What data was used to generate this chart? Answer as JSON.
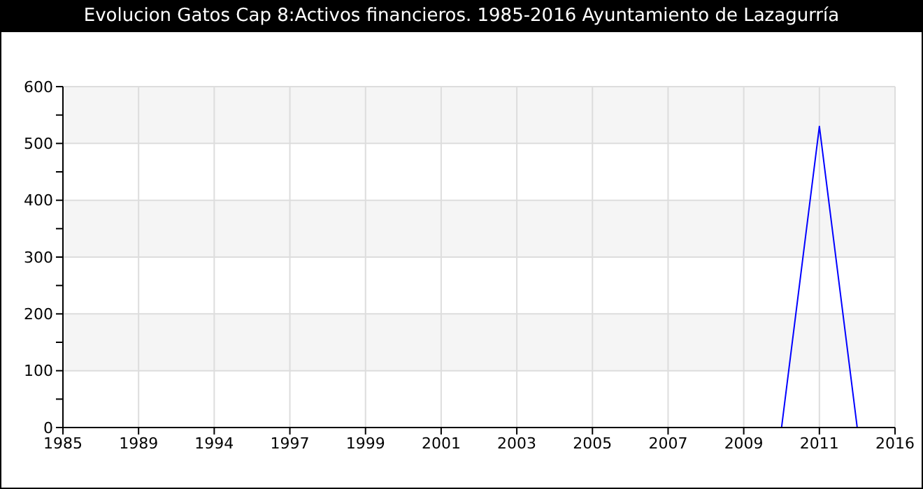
{
  "chart_data": {
    "type": "line",
    "title": "Evolucion Gatos Cap 8:Activos financieros. 1985-2016 Ayuntamiento de Lazagurría",
    "categories": [
      "1985",
      null,
      "1989",
      null,
      "1994",
      null,
      "1997",
      null,
      "1999",
      null,
      "2001",
      null,
      "2003",
      null,
      "2005",
      null,
      "2007",
      null,
      "2009",
      null,
      "2011",
      null,
      "2016"
    ],
    "series": [
      {
        "color": "#0000ff",
        "values": [
          null,
          null,
          null,
          null,
          null,
          null,
          null,
          null,
          null,
          null,
          null,
          null,
          null,
          null,
          null,
          null,
          null,
          null,
          null,
          0,
          530,
          0,
          null
        ]
      }
    ],
    "ylim": [
      0,
      600
    ],
    "yticks": [
      0,
      {
        "value": 50,
        "label": null
      },
      100,
      {
        "value": 150,
        "label": null
      },
      200,
      {
        "value": 250,
        "label": null
      },
      300,
      {
        "value": 350,
        "label": null
      },
      400,
      {
        "value": 450,
        "label": null
      },
      500,
      {
        "value": 550,
        "label": null
      },
      600
    ],
    "grid": true,
    "marker": "none",
    "line_style": "solid"
  }
}
